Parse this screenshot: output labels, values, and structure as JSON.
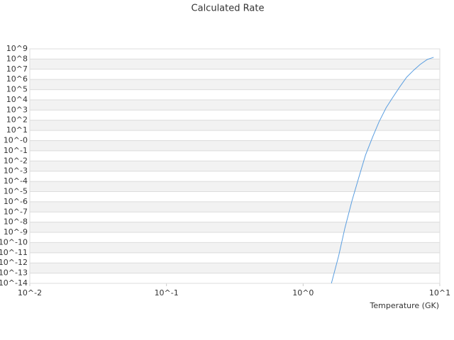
{
  "chart_data": {
    "type": "line",
    "title": "Calculated Rate",
    "x_label": "Temperature (GK)",
    "x": [
      1.61,
      1.82,
      2.02,
      2.28,
      2.57,
      2.86,
      3.23,
      3.59,
      4.05,
      4.51,
      5.08,
      5.72,
      6.45,
      7.18,
      8.09,
      9.01
    ],
    "series": [
      {
        "color": "#5a9ee0",
        "values": [
          1e-14,
          5e-12,
          2.6e-09,
          1.35e-06,
          0.00032,
          0.038,
          2.4,
          69,
          1700,
          16000,
          178000,
          1660000,
          8300000,
          29500000,
          91000000,
          148000000
        ]
      }
    ],
    "xscale": "log",
    "yscale": "log",
    "xlim": [
      0.01,
      10
    ],
    "ylim": [
      1e-14,
      1000000000.0
    ],
    "xticks": [
      {
        "value": 0.01,
        "label": "10^-2"
      },
      {
        "value": 0.1,
        "label": "10^-1"
      },
      {
        "value": 1,
        "label": "10^0"
      },
      {
        "value": 10,
        "label": "10^1"
      }
    ],
    "yticks": [
      {
        "value": 1000000000.0,
        "label": "10^9"
      },
      {
        "value": 100000000.0,
        "label": "10^8"
      },
      {
        "value": 10000000.0,
        "label": "10^7"
      },
      {
        "value": 1000000.0,
        "label": "10^6"
      },
      {
        "value": 100000.0,
        "label": "10^5"
      },
      {
        "value": 10000.0,
        "label": "10^4"
      },
      {
        "value": 1000.0,
        "label": "10^3"
      },
      {
        "value": 100,
        "label": "10^2"
      },
      {
        "value": 10,
        "label": "10^1"
      },
      {
        "value": 1,
        "label": "10^-0"
      },
      {
        "value": 0.1,
        "label": "10^-1"
      },
      {
        "value": 0.01,
        "label": "10^-2"
      },
      {
        "value": 0.001,
        "label": "10^-3"
      },
      {
        "value": 0.0001,
        "label": "10^-4"
      },
      {
        "value": 1e-05,
        "label": "10^-5"
      },
      {
        "value": 1e-06,
        "label": "10^-6"
      },
      {
        "value": 1e-07,
        "label": "10^-7"
      },
      {
        "value": 1e-08,
        "label": "10^-8"
      },
      {
        "value": 1e-09,
        "label": "10^-9"
      },
      {
        "value": 1e-10,
        "label": "10^-10"
      },
      {
        "value": 1e-11,
        "label": "10^-11"
      },
      {
        "value": 1e-12,
        "label": "10^-12"
      },
      {
        "value": 1e-13,
        "label": "10^-13"
      },
      {
        "value": 1e-14,
        "label": "10^-14"
      }
    ],
    "grid": true,
    "band_color": "#f2f2f2"
  }
}
